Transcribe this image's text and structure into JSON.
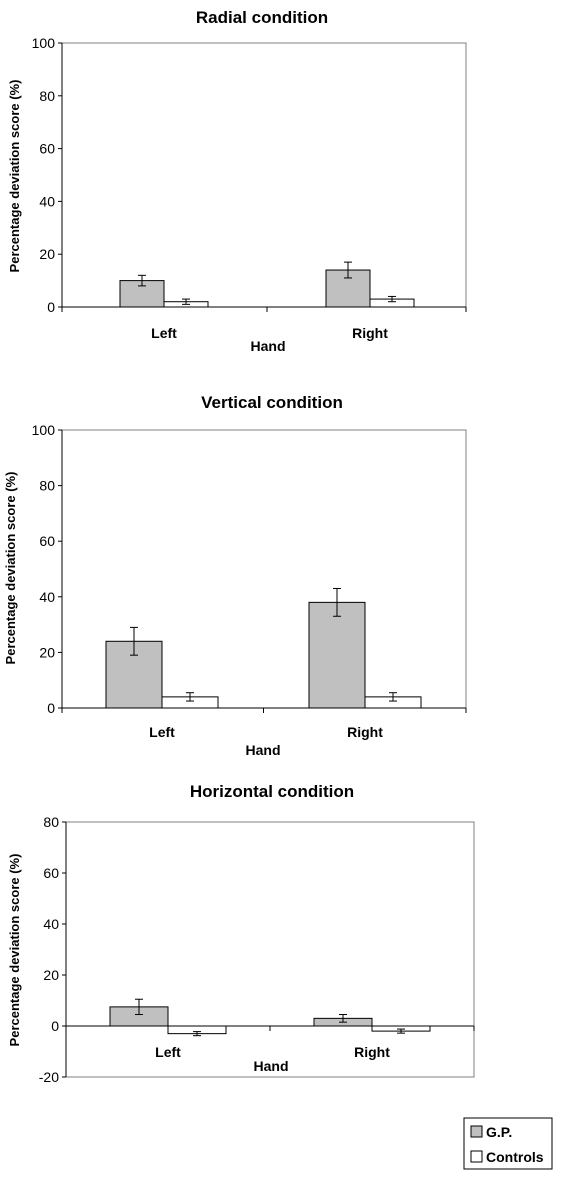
{
  "chart_data": [
    {
      "type": "bar",
      "title": "Radial condition",
      "xlabel": "Hand",
      "ylabel": "Percentage deviation score (%)",
      "categories": [
        "Left",
        "Right"
      ],
      "ylim": [
        0,
        100
      ],
      "yticks": [
        0,
        20,
        40,
        60,
        80,
        100
      ],
      "tick_labels": [
        "0",
        "20",
        "40",
        "60",
        "80",
        "100"
      ],
      "grid": false,
      "series": [
        {
          "name": "G.P.",
          "values": [
            10,
            14
          ],
          "errors": [
            2,
            3
          ]
        },
        {
          "name": "Controls",
          "values": [
            2,
            3
          ],
          "errors": [
            1,
            1
          ]
        }
      ]
    },
    {
      "type": "bar",
      "title": "Vertical condition",
      "xlabel": "Hand",
      "ylabel": "Percentage deviation score (%)",
      "categories": [
        "Left",
        "Right"
      ],
      "ylim": [
        0,
        100
      ],
      "yticks": [
        0,
        20,
        40,
        60,
        80,
        100
      ],
      "tick_labels": [
        "0",
        "20",
        "40",
        "60",
        "80",
        "100"
      ],
      "grid": false,
      "series": [
        {
          "name": "G.P.",
          "values": [
            24,
            38
          ],
          "errors": [
            5,
            5
          ]
        },
        {
          "name": "Controls",
          "values": [
            4,
            4
          ],
          "errors": [
            1.5,
            1.5
          ]
        }
      ]
    },
    {
      "type": "bar",
      "title": "Horizontal condition",
      "xlabel": "Hand",
      "ylabel": "Percentage deviation score (%)",
      "categories": [
        "Left",
        "Right"
      ],
      "ylim": [
        -20,
        80
      ],
      "yticks": [
        -20,
        0,
        20,
        40,
        60,
        80
      ],
      "tick_labels": [
        "-20",
        "0",
        "20",
        "40",
        "60",
        "80"
      ],
      "grid": false,
      "series": [
        {
          "name": "G.P.",
          "values": [
            7.5,
            3
          ],
          "errors": [
            3,
            1.5
          ]
        },
        {
          "name": "Controls",
          "values": [
            -3,
            -2
          ],
          "errors": [
            0.8,
            0.8
          ]
        }
      ]
    }
  ],
  "legend": {
    "position": "bottom-right",
    "items": [
      {
        "label": "G.P.",
        "color": "#c0c0c0"
      },
      {
        "label": "Controls",
        "color": "#ffffff"
      }
    ]
  }
}
